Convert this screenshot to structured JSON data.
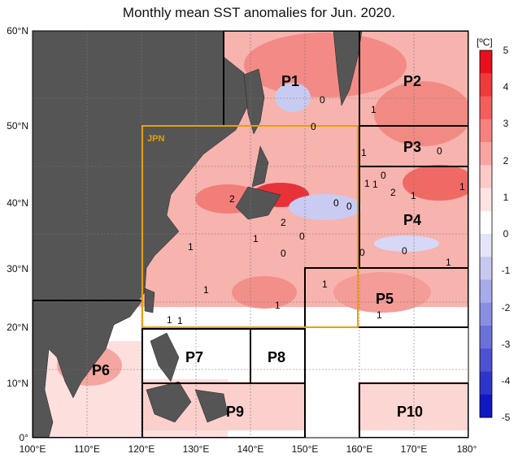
{
  "title": "Monthly mean SST anomalies for Jun. 2020.",
  "map": {
    "lon_ticks": [
      "100°E",
      "110°E",
      "120°E",
      "130°E",
      "140°E",
      "150°E",
      "160°E",
      "170°E",
      "180°"
    ],
    "lat_ticks": [
      "60°N",
      "50°N",
      "40°N",
      "30°N",
      "20°N",
      "10°N",
      "0°"
    ],
    "jpn_label": "JPN",
    "regions": [
      "P1",
      "P2",
      "P3",
      "P4",
      "P5",
      "P6",
      "P7",
      "P8",
      "P9",
      "P10"
    ],
    "contour_labels": [
      "0",
      "0",
      "1",
      "1",
      "0",
      "1",
      "1",
      "0",
      "0",
      "2",
      "0",
      "2",
      "1",
      "0",
      "0",
      "1",
      "1",
      "1",
      "2",
      "1",
      "1",
      "1",
      "1",
      "1",
      "0",
      "0",
      "1",
      "1"
    ]
  },
  "colorbar": {
    "unit": "[ºC]",
    "ticks": [
      "5",
      "4",
      "3",
      "2",
      "1",
      "0",
      "-1",
      "-2",
      "-3",
      "-4",
      "-5"
    ],
    "colors": [
      "#e8101c",
      "#ef3a3c",
      "#f25f5c",
      "#f5827f",
      "#f8a5a1",
      "#fbc9c6",
      "#fde3e1",
      "#ffffff",
      "#e3e4f7",
      "#c6c9f1",
      "#a7abea",
      "#8a8ee2",
      "#6b70da",
      "#4d52d2",
      "#2e35ca",
      "#1018c2"
    ]
  }
}
